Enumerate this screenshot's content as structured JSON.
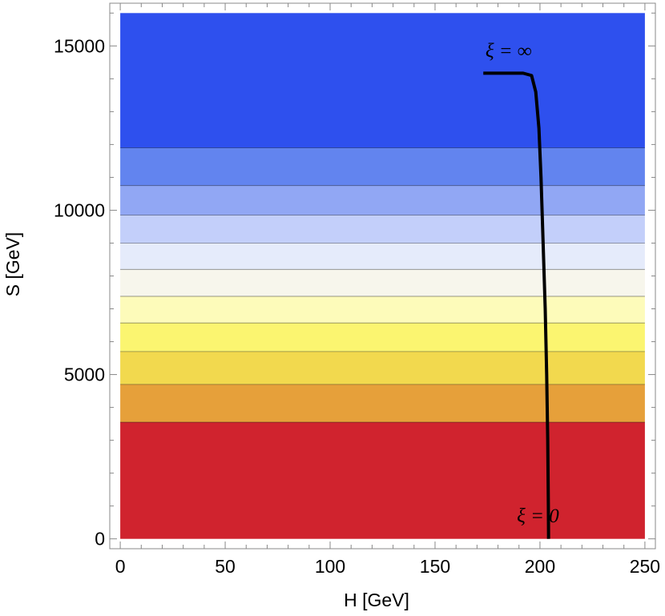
{
  "chart_data": {
    "type": "heatmap",
    "subtype": "contour-bands-with-curve",
    "xlabel": "H  [GeV]",
    "ylabel": "S  [GeV]",
    "xlim": [
      -5,
      255
    ],
    "ylim": [
      -300,
      16300
    ],
    "plot_range": {
      "x": [
        0,
        250
      ],
      "y": [
        0,
        16000
      ]
    },
    "x_ticks": [
      0,
      50,
      100,
      150,
      200,
      250
    ],
    "y_ticks": [
      0,
      5000,
      10000,
      15000
    ],
    "x_tick_labels": [
      "0",
      "50",
      "100",
      "150",
      "200",
      "250"
    ],
    "y_tick_labels": [
      "0",
      "5000",
      "10000",
      "15000"
    ],
    "grid": false,
    "bands": [
      {
        "y0": 0,
        "y1": 3550,
        "color": "#d0232e"
      },
      {
        "y0": 3550,
        "y1": 4700,
        "color": "#e6a03a"
      },
      {
        "y0": 4700,
        "y1": 5700,
        "color": "#f2d94e"
      },
      {
        "y0": 5700,
        "y1": 6570,
        "color": "#fbf570"
      },
      {
        "y0": 6570,
        "y1": 7380,
        "color": "#fdfbba"
      },
      {
        "y0": 7380,
        "y1": 8200,
        "color": "#f7f6ec"
      },
      {
        "y0": 8200,
        "y1": 9000,
        "color": "#e5ebfb"
      },
      {
        "y0": 9000,
        "y1": 9850,
        "color": "#c3cffa"
      },
      {
        "y0": 9850,
        "y1": 10750,
        "color": "#91a7f4"
      },
      {
        "y0": 10750,
        "y1": 11900,
        "color": "#6284ef"
      },
      {
        "y0": 11900,
        "y1": 16000,
        "color": "#2e50ee"
      }
    ],
    "curve": {
      "name": "",
      "color": "#000000",
      "points": [
        [
          173,
          14170
        ],
        [
          192,
          14170
        ],
        [
          196,
          14100
        ],
        [
          198,
          13600
        ],
        [
          199.5,
          12500
        ],
        [
          200.5,
          11000
        ],
        [
          201.5,
          9000
        ],
        [
          202.5,
          7000
        ],
        [
          203.2,
          5000
        ],
        [
          203.7,
          3000
        ],
        [
          204,
          1000
        ],
        [
          204.1,
          0
        ]
      ]
    },
    "annotations": [
      {
        "text": "ξ = ∞",
        "x": 174,
        "y": 14650
      },
      {
        "text": "ξ = 0",
        "x": 189,
        "y": 500
      }
    ]
  }
}
